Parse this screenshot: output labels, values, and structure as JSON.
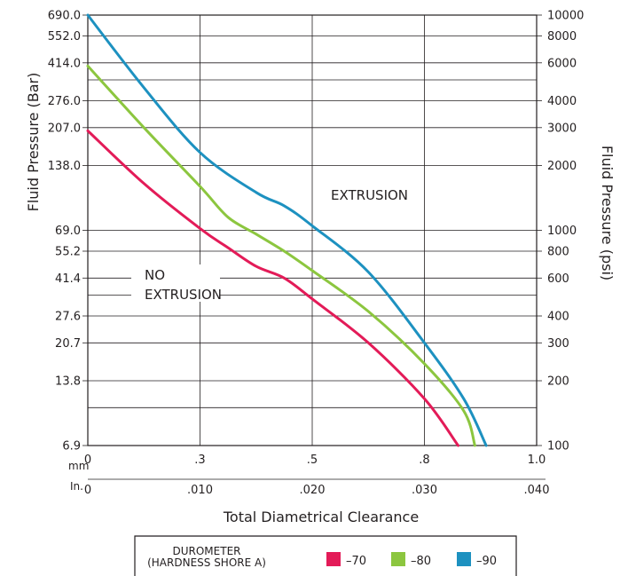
{
  "chart_data": {
    "type": "line",
    "title": "",
    "y_left_label": "Fluid Pressure (Bar)",
    "y_right_label": "Fluid Pressure (psi)",
    "x_label": "Total Diametrical Clearance",
    "y_scale": "log",
    "y_left_ticks": [
      "690.0",
      "552.0",
      "414.0",
      "276.0",
      "207.0",
      "138.0",
      "69.0",
      "55.2",
      "41.4",
      "27.6",
      "20.7",
      "13.8",
      "6.9"
    ],
    "y_right_ticks": [
      "10000",
      "8000",
      "6000",
      "4000",
      "3000",
      "2000",
      "1000",
      "800",
      "600",
      "400",
      "300",
      "200",
      "100"
    ],
    "x_mm_unit": "mm",
    "x_mm_ticks": [
      "0",
      ".3",
      ".5",
      ".8",
      "1.0"
    ],
    "x_in_unit": "In.",
    "x_in_ticks": [
      "0",
      ".010",
      ".020",
      ".030",
      ".040"
    ],
    "xlim_in": [
      0,
      0.04
    ],
    "ylim_psi": [
      100,
      10000
    ],
    "region_labels": {
      "extrusion": "EXTRUSION",
      "no_extrusion_line1": "NO",
      "no_extrusion_line2": "EXTRUSION"
    },
    "series": [
      {
        "name": "–70",
        "color": "#e31b58",
        "points": [
          [
            0.0,
            2900
          ],
          [
            0.005,
            1650
          ],
          [
            0.01,
            1020
          ],
          [
            0.0125,
            830
          ],
          [
            0.015,
            680
          ],
          [
            0.0175,
            600
          ],
          [
            0.02,
            480
          ],
          [
            0.025,
            300
          ],
          [
            0.03,
            165
          ],
          [
            0.033,
            100
          ]
        ]
      },
      {
        "name": "–80",
        "color": "#8cc63f",
        "points": [
          [
            0.0,
            5800
          ],
          [
            0.005,
            3000
          ],
          [
            0.01,
            1600
          ],
          [
            0.0125,
            1150
          ],
          [
            0.015,
            960
          ],
          [
            0.0175,
            800
          ],
          [
            0.02,
            650
          ],
          [
            0.025,
            420
          ],
          [
            0.03,
            240
          ],
          [
            0.0335,
            145
          ],
          [
            0.0345,
            100
          ]
        ]
      },
      {
        "name": "–90",
        "color": "#1d91c0",
        "points": [
          [
            0.0,
            10000
          ],
          [
            0.005,
            4600
          ],
          [
            0.01,
            2300
          ],
          [
            0.015,
            1500
          ],
          [
            0.0175,
            1300
          ],
          [
            0.02,
            1050
          ],
          [
            0.025,
            640
          ],
          [
            0.03,
            300
          ],
          [
            0.0335,
            165
          ],
          [
            0.0355,
            100
          ]
        ]
      }
    ],
    "legend": {
      "title_line1": "DUROMETER",
      "title_line2": "(HARDNESS SHORE A)",
      "placement": "bottom"
    }
  }
}
